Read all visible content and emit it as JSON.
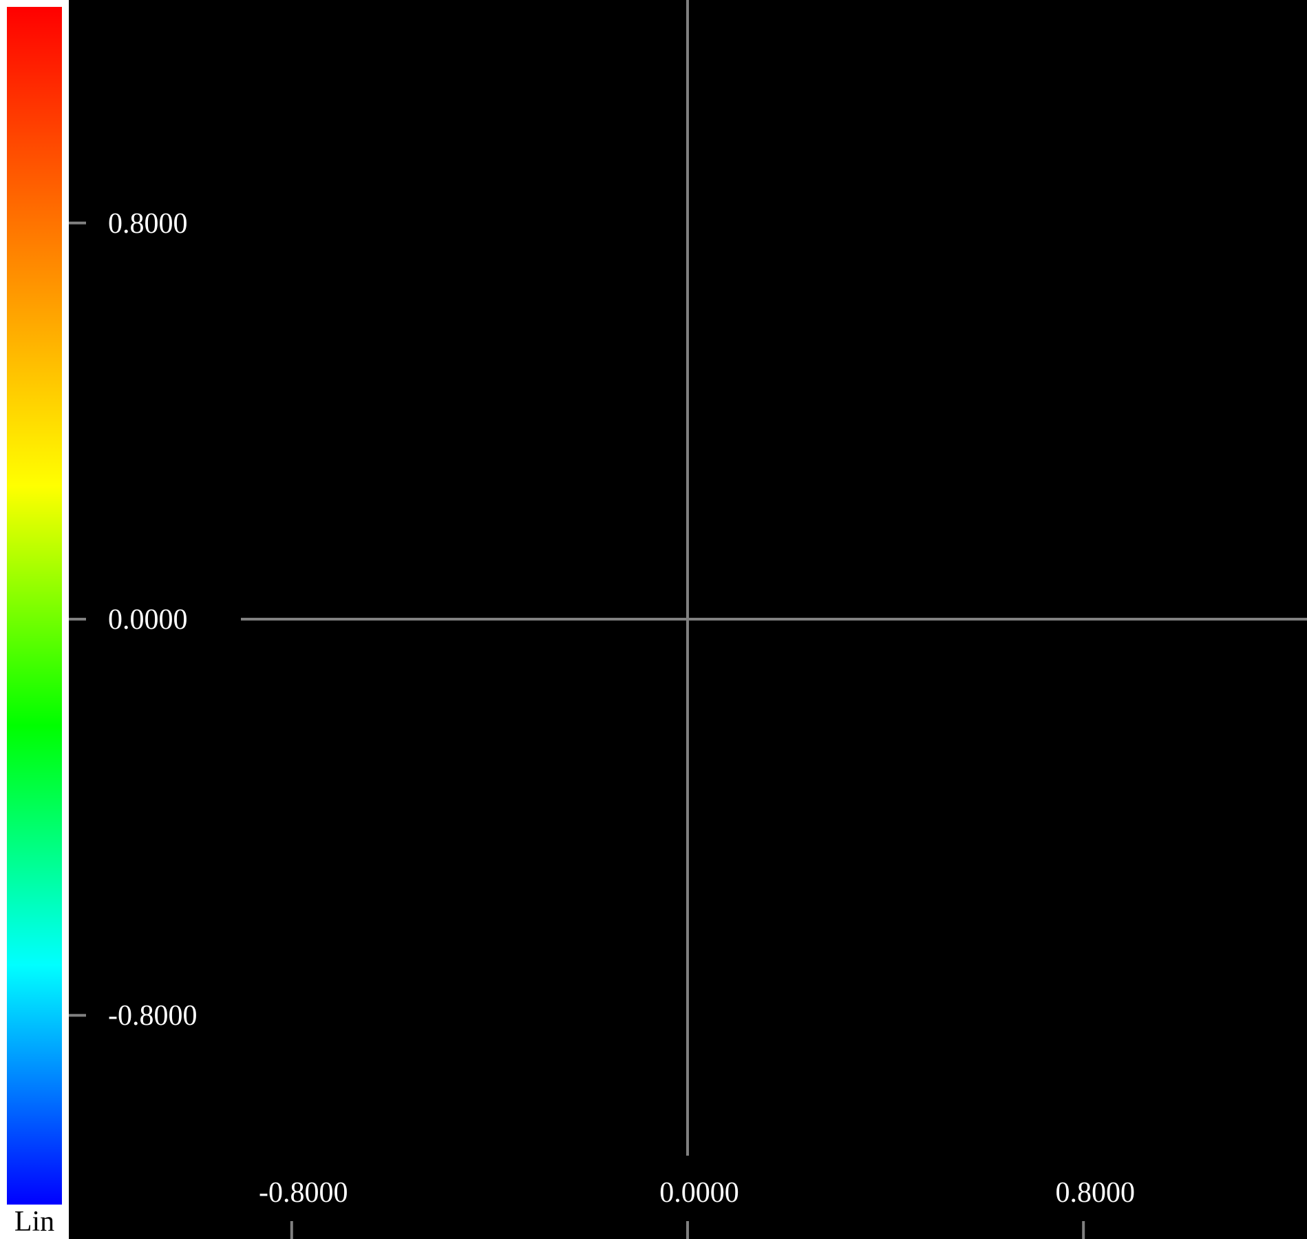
{
  "colorbar": {
    "scale_label": "Lin",
    "stops": [
      "#ff0000",
      "#ff8000",
      "#ffff00",
      "#00ff00",
      "#00ffff",
      "#0000ff"
    ]
  },
  "axes": {
    "line_color": "#808080",
    "background": "#000000",
    "text_color": "#ffffff",
    "x_ticks": [
      {
        "value": -0.8,
        "label": "-0.8000"
      },
      {
        "value": 0.0,
        "label": "0.0000"
      },
      {
        "value": 0.8,
        "label": "0.8000"
      }
    ],
    "y_ticks": [
      {
        "value": 0.8,
        "label": "0.8000"
      },
      {
        "value": 0.0,
        "label": "0.0000"
      },
      {
        "value": -0.8,
        "label": "-0.8000"
      }
    ]
  }
}
